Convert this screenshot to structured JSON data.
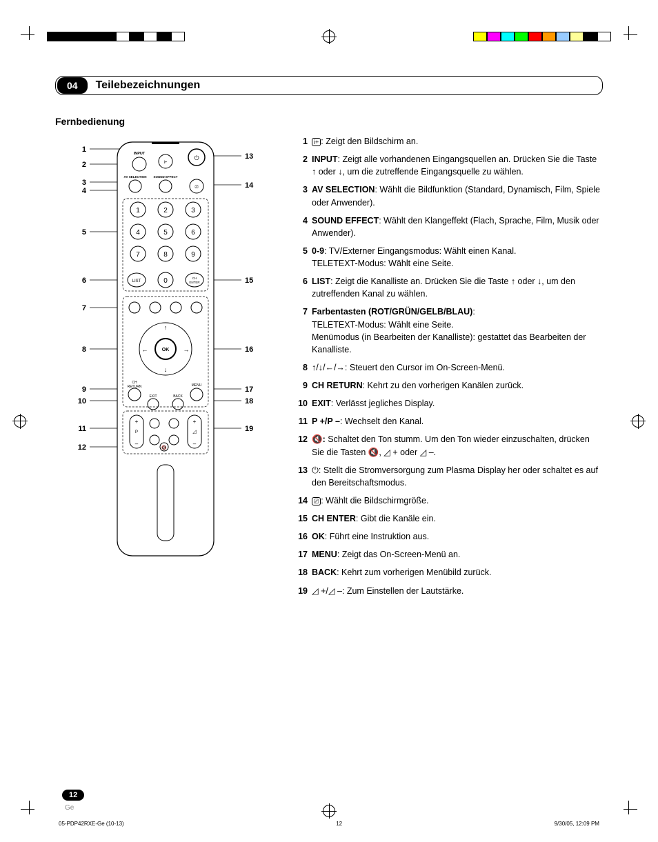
{
  "chapter": {
    "number": "04",
    "title": "Teilebezeichnungen"
  },
  "section_title": "Fernbedienung",
  "remote": {
    "labels": {
      "input": "INPUT",
      "av_selection": "AV SELECTION",
      "sound_effect": "SOUND EFFECT",
      "list": "LIST",
      "ch_enter": "CH\nENTER",
      "ok": "OK",
      "ch_return": "CH\nRETURN",
      "menu": "MENU",
      "exit": "EXIT",
      "back": "BACK",
      "p": "P"
    },
    "callouts_left": [
      "1",
      "2",
      "3",
      "4",
      "5",
      "6",
      "7",
      "8",
      "9",
      "10",
      "11",
      "12"
    ],
    "callouts_right": [
      "13",
      "14",
      "15",
      "16",
      "17",
      "18",
      "19"
    ]
  },
  "descriptions": [
    {
      "n": "1",
      "html": "<span class='circled'>i+</span>: Zeigt den Bildschirm an."
    },
    {
      "n": "2",
      "html": "<b>INPUT</b>: Zeigt alle vorhandenen Eingangsquellen an. Drücken Sie die Taste ↑ oder ↓, um die zutreffende Eingangsquelle zu wählen."
    },
    {
      "n": "3",
      "html": "<b>AV SELECTION</b>: Wählt die Bildfunktion (Standard, Dynamisch, Film, Spiele oder Anwender)."
    },
    {
      "n": "4",
      "html": "<b>SOUND EFFECT</b>: Wählt den Klangeffekt (Flach, Sprache, Film, Musik oder Anwender)."
    },
    {
      "n": "5",
      "html": "<b>0-9</b>: TV/Externer Eingangsmodus: Wählt einen Kanal.<br>TELETEXT-Modus: Wählt eine Seite."
    },
    {
      "n": "6",
      "html": "<b>LIST</b>: Zeigt die Kanalliste an. Drücken Sie die Taste ↑ oder ↓, um den zutreffenden Kanal zu wählen."
    },
    {
      "n": "7",
      "html": "<b>Farbentasten (ROT/GRÜN/GELB/BLAU)</b>:<br>TELETEXT-Modus: Wählt eine Seite.<br>Menümodus (in Bearbeiten der Kanalliste): gestattet das Bearbeiten der Kanalliste."
    },
    {
      "n": "8",
      "html": "↑/↓/←/→: Steuert den Cursor im On-Screen-Menü."
    },
    {
      "n": "9",
      "html": "<b>CH RETURN</b>: Kehrt zu den vorherigen Kanälen zurück."
    },
    {
      "n": "10",
      "html": "<b>EXIT</b>: Verlässt jegliches Display."
    },
    {
      "n": "11",
      "html": "<b>P +/P –</b>: Wechselt den Kanal."
    },
    {
      "n": "12",
      "html": "🔇<b>:</b> Schaltet den Ton stumm. Um den Ton wieder einzuschalten, drücken Sie die Tasten 🔇, ◿ + oder ◿ –."
    },
    {
      "n": "13",
      "html": "⏻: Stellt die Stromversorgung zum Plasma Display her oder schaltet es auf den Bereitschaftsmodus."
    },
    {
      "n": "14",
      "html": "<span class='circled'>⎚</span>: Wählt die Bildschirmgröße."
    },
    {
      "n": "15",
      "html": "<b>CH ENTER</b>: Gibt die Kanäle ein."
    },
    {
      "n": "16",
      "html": "<b>OK</b>: Führt eine Instruktion aus."
    },
    {
      "n": "17",
      "html": "<b>MENU</b>: Zeigt das On-Screen-Menü an."
    },
    {
      "n": "18",
      "html": "<b>BACK</b>: Kehrt zum vorherigen Menübild zurück."
    },
    {
      "n": "19",
      "html": "◿ +/◿ –: Zum Einstellen der Lautstärke."
    }
  ],
  "color_bars_left": [
    "#000",
    "#000",
    "#000",
    "#000",
    "#000",
    "#fff",
    "#000",
    "#fff",
    "#000",
    "#fff"
  ],
  "color_bars_right": [
    "#ff0",
    "#f0f",
    "#0ff",
    "#0f0",
    "#f00",
    "#f90",
    "#9cf",
    "#ff9",
    "#000",
    "#fff"
  ],
  "page_number": "12",
  "lang": "Ge",
  "footer": {
    "left": "05-PDP42RXE-Ge (10-13)",
    "mid": "12",
    "right": "9/30/05, 12:09 PM"
  }
}
